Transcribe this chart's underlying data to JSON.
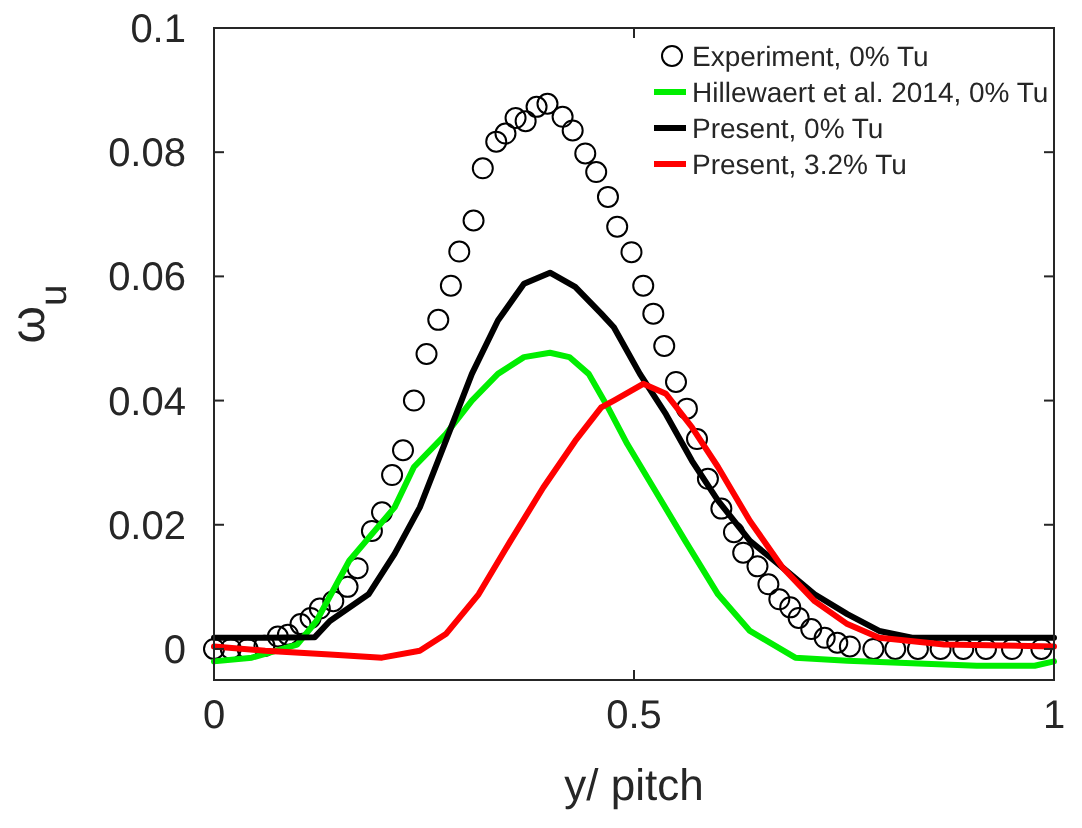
{
  "chart_data": {
    "type": "line",
    "xlabel": "y/ pitch",
    "ylabel": "ω$_{u}$",
    "xlim": [
      0,
      1
    ],
    "ylim": [
      -0.005,
      0.1
    ],
    "xticks": [
      0,
      0.5,
      1
    ],
    "yticks": [
      0,
      0.02,
      0.04,
      0.06,
      0.08,
      0.1
    ],
    "grid": false,
    "legend": "top right",
    "series": [
      {
        "name": "Experiment, 0% Tu",
        "type": "scatter",
        "marker": "circle",
        "color": "#000000",
        "x": [
          0,
          0.02,
          0.04,
          0.06,
          0.076,
          0.088,
          0.103,
          0.115,
          0.126,
          0.142,
          0.159,
          0.171,
          0.188,
          0.2,
          0.212,
          0.225,
          0.238,
          0.253,
          0.267,
          0.282,
          0.292,
          0.309,
          0.32,
          0.336,
          0.347,
          0.359,
          0.371,
          0.384,
          0.397,
          0.415,
          0.427,
          0.442,
          0.455,
          0.469,
          0.48,
          0.497,
          0.511,
          0.523,
          0.536,
          0.55,
          0.563,
          0.575,
          0.588,
          0.604,
          0.619,
          0.63,
          0.647,
          0.66,
          0.673,
          0.686,
          0.696,
          0.711,
          0.727,
          0.742,
          0.757,
          0.785,
          0.811,
          0.838,
          0.865,
          0.892,
          0.919,
          0.95,
          0.985
        ],
        "values": [
          0,
          0,
          0,
          0.0005,
          0.002,
          0.0023,
          0.004,
          0.005,
          0.0065,
          0.0077,
          0.01,
          0.013,
          0.019,
          0.022,
          0.028,
          0.032,
          0.04,
          0.0475,
          0.053,
          0.0585,
          0.064,
          0.069,
          0.0774,
          0.0817,
          0.083,
          0.0855,
          0.085,
          0.0873,
          0.0878,
          0.0857,
          0.0835,
          0.0798,
          0.0768,
          0.0728,
          0.068,
          0.0639,
          0.0585,
          0.054,
          0.0488,
          0.043,
          0.0387,
          0.0338,
          0.0274,
          0.0226,
          0.0188,
          0.0155,
          0.0133,
          0.0104,
          0.008,
          0.0067,
          0.005,
          0.0032,
          0.0018,
          0.001,
          0.0004,
          0,
          0,
          0,
          0,
          0,
          0,
          0,
          0
        ]
      },
      {
        "name": "Hillewaert et al. 2014, 0% Tu",
        "color": "#00ee00",
        "x": [
          0,
          0.045,
          0.099,
          0.122,
          0.161,
          0.215,
          0.238,
          0.276,
          0.307,
          0.338,
          0.369,
          0.4,
          0.423,
          0.446,
          0.469,
          0.492,
          0.523,
          0.561,
          0.6,
          0.638,
          0.692,
          0.754,
          0.831,
          0.908,
          0.977,
          1
        ],
        "values": [
          -0.002,
          -0.0014,
          0.0007,
          0.0045,
          0.0142,
          0.0228,
          0.0293,
          0.0346,
          0.04,
          0.0443,
          0.047,
          0.0477,
          0.047,
          0.0443,
          0.0389,
          0.033,
          0.026,
          0.0174,
          0.0088,
          0.0029,
          -0.0014,
          -0.0019,
          -0.0023,
          -0.0027,
          -0.0027,
          -0.002
        ]
      },
      {
        "name": "Present, 0% Tu",
        "color": "#000000",
        "x": [
          0,
          0.06,
          0.12,
          0.138,
          0.184,
          0.215,
          0.245,
          0.276,
          0.307,
          0.338,
          0.369,
          0.4,
          0.43,
          0.461,
          0.476,
          0.507,
          0.538,
          0.569,
          0.6,
          0.638,
          0.677,
          0.715,
          0.754,
          0.792,
          0.831,
          0.9,
          1
        ],
        "values": [
          0.0018,
          0.0018,
          0.0019,
          0.0045,
          0.0088,
          0.0153,
          0.0228,
          0.0335,
          0.0443,
          0.0529,
          0.0588,
          0.0606,
          0.0583,
          0.054,
          0.0518,
          0.0443,
          0.0378,
          0.0303,
          0.0239,
          0.0174,
          0.0131,
          0.0088,
          0.0056,
          0.0029,
          0.0018,
          0.0018,
          0.0018
        ]
      },
      {
        "name": "Present, 3.2% Tu",
        "color": "#ff0000",
        "x": [
          0,
          0.061,
          0.138,
          0.2,
          0.245,
          0.276,
          0.315,
          0.353,
          0.392,
          0.43,
          0.461,
          0.476,
          0.511,
          0.538,
          0.569,
          0.6,
          0.638,
          0.677,
          0.715,
          0.754,
          0.792,
          0.869,
          1
        ],
        "values": [
          0.0004,
          -0.0003,
          -0.0009,
          -0.0014,
          -0.0003,
          0.0024,
          0.0088,
          0.0174,
          0.026,
          0.0335,
          0.0389,
          0.04,
          0.0427,
          0.0411,
          0.0357,
          0.0293,
          0.0206,
          0.0131,
          0.0077,
          0.004,
          0.0018,
          0.0007,
          0.0004
        ]
      }
    ]
  }
}
